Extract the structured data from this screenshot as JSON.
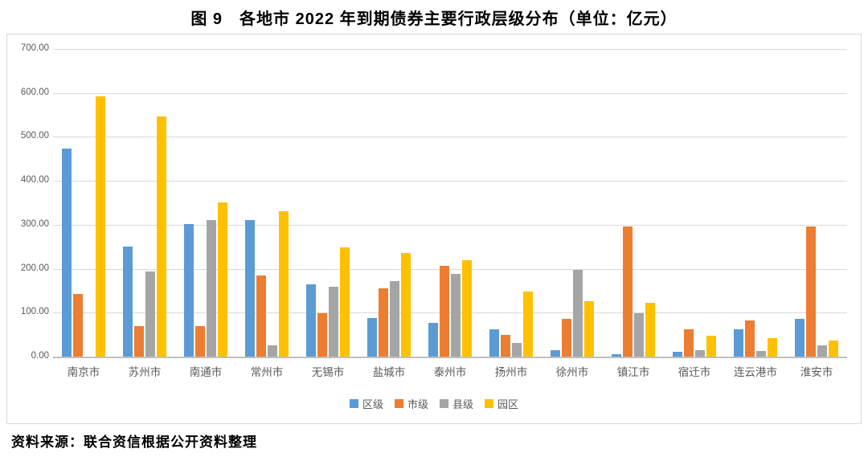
{
  "title": "图 9　各地市 2022 年到期债券主要行政层级分布（单位：亿元）",
  "source_note": "资料来源：联合资信根据公开资料整理",
  "chart_data": {
    "type": "bar",
    "title": "图 9 各地市 2022 年到期债券主要行政层级分布（单位：亿元）",
    "unit": "亿元",
    "categories": [
      "南京市",
      "苏州市",
      "南通市",
      "常州市",
      "无锡市",
      "盐城市",
      "泰州市",
      "扬州市",
      "徐州市",
      "镇江市",
      "宿迁市",
      "连云港市",
      "淮安市"
    ],
    "series": [
      {
        "name": "区级",
        "color": "#5B9BD5",
        "values": [
          473,
          251,
          301,
          311,
          164,
          88,
          76,
          62,
          15,
          6,
          11,
          63,
          86
        ]
      },
      {
        "name": "市级",
        "color": "#ED7D31",
        "values": [
          142,
          70,
          70,
          184,
          99,
          156,
          207,
          49,
          86,
          297,
          62,
          83,
          297
        ]
      },
      {
        "name": "县级",
        "color": "#A5A5A5",
        "values": [
          0,
          194,
          311,
          25,
          159,
          172,
          189,
          32,
          197,
          99,
          14,
          12,
          26
        ]
      },
      {
        "name": "园区",
        "color": "#FFC000",
        "values": [
          593,
          546,
          351,
          330,
          248,
          236,
          220,
          148,
          126,
          122,
          48,
          43,
          36
        ]
      }
    ],
    "ylim": [
      0,
      700
    ],
    "yticks": [
      "0.00",
      "100.00",
      "200.00",
      "300.00",
      "400.00",
      "500.00",
      "600.00",
      "700.00"
    ],
    "xlabel": "",
    "ylabel": "",
    "grid": true,
    "legend_position": "bottom"
  }
}
